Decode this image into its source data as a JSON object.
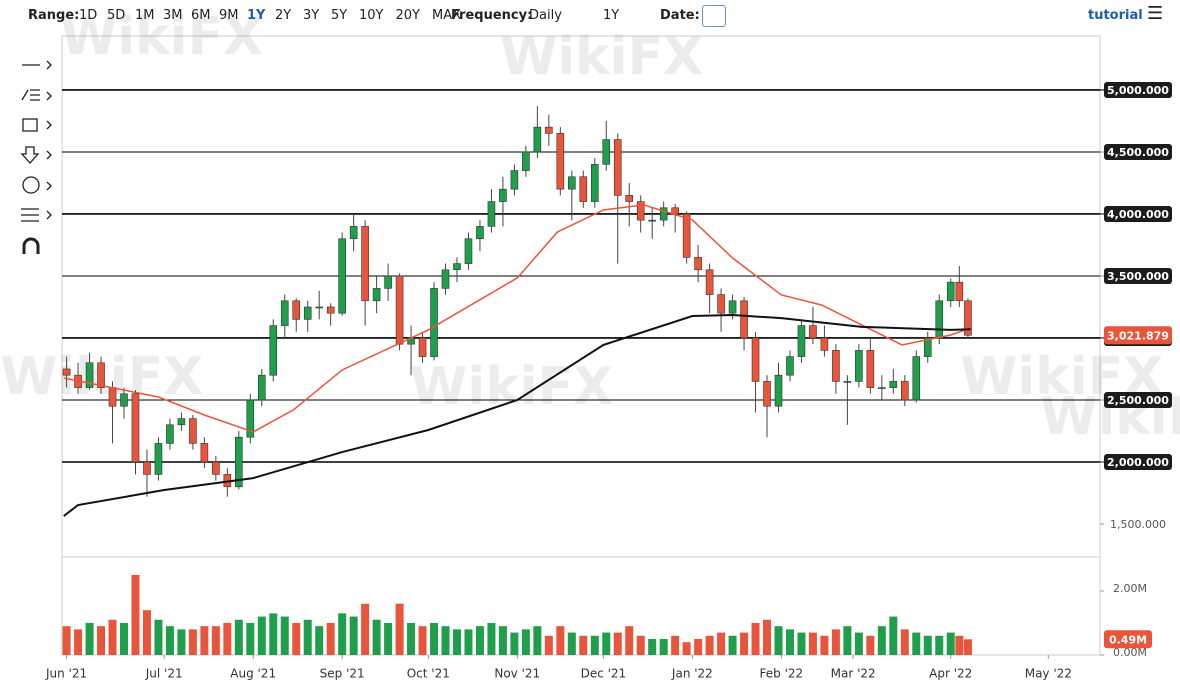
{
  "toolbar": {
    "range_label": "Range:",
    "ranges": [
      "1D",
      "5D",
      "1M",
      "3M",
      "6M",
      "9M",
      "1Y",
      "2Y",
      "3Y",
      "5Y",
      "10Y",
      "20Y",
      "MAX"
    ],
    "range_selected": 6,
    "frequency_label": "Frequency:",
    "frequency": "Daily",
    "period": "1Y",
    "date_label": "Date:",
    "tutorial": "tutorial"
  },
  "watermark": "WikiFX",
  "chart_data": {
    "type": "candlestick",
    "x": [
      -4,
      0,
      4,
      8,
      12,
      16,
      20,
      24,
      28,
      32,
      36,
      40,
      44,
      48,
      52,
      56,
      60,
      64,
      68,
      72,
      76,
      80,
      84,
      88,
      92,
      96,
      100,
      104,
      108,
      112,
      116,
      120,
      124,
      128,
      132,
      136,
      140,
      144,
      148,
      152,
      156,
      160,
      164,
      168,
      172,
      176,
      180,
      184,
      188,
      192,
      196,
      200,
      204,
      208,
      212,
      216,
      220,
      224,
      228,
      232,
      236,
      240,
      244,
      248,
      252,
      256,
      260,
      264,
      268,
      272,
      276,
      280,
      284,
      288,
      292,
      296,
      300,
      304,
      307,
      310
    ],
    "ohlc": [
      [
        2750,
        2850,
        2600,
        2700
      ],
      [
        2700,
        2800,
        2550,
        2600
      ],
      [
        2600,
        2880,
        2580,
        2800
      ],
      [
        2800,
        2850,
        2550,
        2600
      ],
      [
        2600,
        2650,
        2150,
        2450
      ],
      [
        2450,
        2600,
        2350,
        2550
      ],
      [
        2550,
        2580,
        1900,
        2000
      ],
      [
        2000,
        2100,
        1720,
        1900
      ],
      [
        1900,
        2200,
        1850,
        2150
      ],
      [
        2150,
        2350,
        2100,
        2300
      ],
      [
        2300,
        2400,
        2250,
        2350
      ],
      [
        2350,
        2380,
        2100,
        2150
      ],
      [
        2150,
        2200,
        1950,
        2000
      ],
      [
        2000,
        2050,
        1850,
        1900
      ],
      [
        1900,
        1950,
        1720,
        1800
      ],
      [
        1800,
        2250,
        1780,
        2200
      ],
      [
        2200,
        2550,
        2150,
        2500
      ],
      [
        2500,
        2750,
        2450,
        2700
      ],
      [
        2700,
        3150,
        2650,
        3100
      ],
      [
        3100,
        3350,
        3000,
        3300
      ],
      [
        3300,
        3320,
        3050,
        3150
      ],
      [
        3150,
        3300,
        3050,
        3250
      ],
      [
        3250,
        3380,
        3150,
        3250
      ],
      [
        3250,
        3280,
        3100,
        3200
      ],
      [
        3200,
        3850,
        3180,
        3800
      ],
      [
        3800,
        4000,
        3700,
        3900
      ],
      [
        3900,
        3950,
        3100,
        3300
      ],
      [
        3300,
        3500,
        3200,
        3400
      ],
      [
        3400,
        3600,
        3300,
        3500
      ],
      [
        3500,
        3520,
        2900,
        2950
      ],
      [
        2950,
        3100,
        2700,
        3000
      ],
      [
        3000,
        3050,
        2800,
        2850
      ],
      [
        2850,
        3450,
        2820,
        3400
      ],
      [
        3400,
        3600,
        3350,
        3550
      ],
      [
        3550,
        3650,
        3450,
        3600
      ],
      [
        3600,
        3850,
        3550,
        3800
      ],
      [
        3800,
        3950,
        3700,
        3900
      ],
      [
        3900,
        4200,
        3850,
        4100
      ],
      [
        4100,
        4300,
        3900,
        4200
      ],
      [
        4200,
        4400,
        4150,
        4350
      ],
      [
        4350,
        4550,
        4300,
        4500
      ],
      [
        4500,
        4870,
        4450,
        4700
      ],
      [
        4700,
        4800,
        4550,
        4650
      ],
      [
        4650,
        4700,
        4150,
        4200
      ],
      [
        4200,
        4350,
        3950,
        4300
      ],
      [
        4300,
        4350,
        4050,
        4100
      ],
      [
        4100,
        4450,
        4050,
        4400
      ],
      [
        4400,
        4750,
        4350,
        4600
      ],
      [
        4600,
        4650,
        3600,
        4150
      ],
      [
        4150,
        4250,
        3900,
        4100
      ],
      [
        4100,
        4150,
        3850,
        3950
      ],
      [
        3950,
        4050,
        3800,
        3950
      ],
      [
        3950,
        4100,
        3900,
        4050
      ],
      [
        4050,
        4080,
        3850,
        4000
      ],
      [
        4000,
        4020,
        3600,
        3650
      ],
      [
        3650,
        3750,
        3450,
        3550
      ],
      [
        3550,
        3600,
        3200,
        3350
      ],
      [
        3350,
        3400,
        3050,
        3200
      ],
      [
        3200,
        3350,
        3150,
        3300
      ],
      [
        3300,
        3330,
        2900,
        3000
      ],
      [
        3000,
        3050,
        2400,
        2650
      ],
      [
        2650,
        2700,
        2200,
        2450
      ],
      [
        2450,
        2800,
        2400,
        2700
      ],
      [
        2700,
        2900,
        2650,
        2850
      ],
      [
        2850,
        3150,
        2800,
        3100
      ],
      [
        3100,
        3250,
        2950,
        3000
      ],
      [
        3000,
        3100,
        2850,
        2900
      ],
      [
        2900,
        2950,
        2550,
        2650
      ],
      [
        2650,
        2700,
        2300,
        2650
      ],
      [
        2650,
        2950,
        2600,
        2900
      ],
      [
        2900,
        3000,
        2550,
        2600
      ],
      [
        2600,
        2700,
        2500,
        2600
      ],
      [
        2600,
        2750,
        2550,
        2650
      ],
      [
        2650,
        2700,
        2450,
        2500
      ],
      [
        2500,
        2900,
        2480,
        2850
      ],
      [
        2850,
        3050,
        2800,
        3000
      ],
      [
        3000,
        3350,
        2950,
        3300
      ],
      [
        3300,
        3480,
        3250,
        3450
      ],
      [
        3450,
        3580,
        3250,
        3300
      ],
      [
        3300,
        3320,
        3000,
        3021.879
      ]
    ],
    "up_color": "#1f9e4b",
    "down_color": "#e9553b",
    "last_label": "3,021.879",
    "ma": [
      {
        "color": "#e9553b",
        "x": [
          -5,
          28,
          44,
          61,
          75,
          92,
          122,
          153,
          167,
          183,
          197,
          214,
          228,
          245,
          259,
          273,
          287,
          304,
          311
        ],
        "values": [
          2677,
          2524,
          2379,
          2242,
          2420,
          2742,
          3065,
          3484,
          3855,
          4032,
          4073,
          3952,
          3645,
          3347,
          3266,
          3105,
          2944,
          3024,
          3081
        ]
      },
      {
        "color": "#111111",
        "x": [
          -5,
          0,
          30,
          61,
          92,
          122,
          153,
          183,
          214,
          228,
          245,
          273,
          304,
          311
        ],
        "values": [
          1564,
          1653,
          1774,
          1870,
          2080,
          2258,
          2500,
          2944,
          3177,
          3185,
          3160,
          3090,
          3065,
          3070
        ]
      }
    ],
    "hlines": [
      5000,
      4500,
      4000,
      3500,
      3000,
      2500,
      2000
    ],
    "xlim": [
      -5.6,
      356
    ],
    "xticks": [
      {
        "value": -4,
        "label": "Jun '21"
      },
      {
        "value": 30,
        "label": "Jul '21"
      },
      {
        "value": 61,
        "label": "Aug '21"
      },
      {
        "value": 92,
        "label": "Sep '21"
      },
      {
        "value": 122,
        "label": "Oct '21"
      },
      {
        "value": 153,
        "label": "Nov '21"
      },
      {
        "value": 183,
        "label": "Dec '21"
      },
      {
        "value": 214,
        "label": "Jan '22"
      },
      {
        "value": 245,
        "label": "Feb '22"
      },
      {
        "value": 270,
        "label": "Mar '22"
      },
      {
        "value": 304,
        "label": "Apr '22"
      },
      {
        "value": 338,
        "label": "May '22"
      }
    ],
    "ylim": [
      1234,
      5435
    ],
    "yticks": [
      {
        "value": 1500,
        "label": "1,500.000"
      },
      {
        "value": 2000,
        "label": "2,000.000"
      },
      {
        "value": 2500,
        "label": "2,500.000"
      },
      {
        "value": 3000,
        "label": "3,000.000"
      },
      {
        "value": 3500,
        "label": "3,500.000"
      },
      {
        "value": 4000,
        "label": "4,000.000"
      },
      {
        "value": 4500,
        "label": "4,500.000"
      },
      {
        "value": 5000,
        "label": "5,000.000"
      }
    ],
    "volume": {
      "values": [
        0.9,
        0.8,
        1.0,
        0.9,
        1.1,
        1.0,
        2.5,
        1.4,
        1.1,
        0.9,
        0.8,
        0.8,
        0.9,
        0.9,
        1.0,
        1.1,
        1.0,
        1.2,
        1.3,
        1.2,
        1.0,
        1.1,
        0.9,
        1.0,
        1.3,
        1.2,
        1.6,
        1.1,
        1.0,
        1.6,
        1.0,
        0.9,
        1.0,
        0.9,
        0.8,
        0.8,
        0.9,
        1.0,
        0.9,
        0.7,
        0.8,
        0.9,
        0.6,
        0.9,
        0.7,
        0.6,
        0.6,
        0.7,
        0.7,
        0.9,
        0.6,
        0.5,
        0.5,
        0.6,
        0.4,
        0.5,
        0.6,
        0.7,
        0.6,
        0.7,
        1.0,
        1.1,
        0.9,
        0.8,
        0.7,
        0.7,
        0.6,
        0.8,
        0.9,
        0.7,
        0.6,
        0.9,
        1.2,
        0.8,
        0.7,
        0.6,
        0.6,
        0.7,
        0.6,
        0.49
      ],
      "value_labels": [
        null,
        null,
        null,
        null,
        null,
        null,
        null,
        null,
        null,
        null,
        null,
        null,
        null,
        null,
        null,
        null,
        null,
        null,
        null,
        null,
        null,
        null,
        null,
        null,
        null,
        null,
        null,
        null,
        null,
        null,
        null,
        null,
        null,
        null,
        null,
        null,
        null,
        null,
        null,
        null,
        null,
        null,
        null,
        null,
        null,
        null,
        null,
        null,
        null,
        null,
        null,
        null,
        null,
        null,
        null,
        null,
        null,
        null,
        null,
        null,
        null,
        null,
        null,
        null,
        null,
        null,
        null,
        null,
        null,
        null,
        null,
        null,
        null,
        null,
        null,
        null,
        null,
        null,
        null,
        "0.49M"
      ],
      "ylim": [
        0,
        3.06
      ],
      "yticks": [
        {
          "value": 0,
          "label": "0.00M"
        },
        {
          "value": 2,
          "label": "2.00M"
        }
      ]
    }
  }
}
